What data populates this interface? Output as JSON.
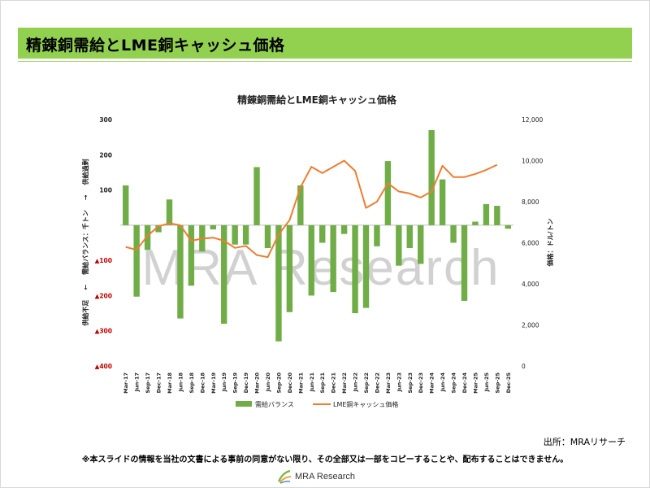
{
  "header": {
    "title": "精錬銅需給とLME銅キャッシュ価格"
  },
  "source_note": "出所：MRAリサーチ",
  "disclaimer": "※本スライドの情報を当社の文書による事前の同意がない限り、その全部又は一部をコピーすることや、配布することはできません。",
  "logo": {
    "text": "MRA Research"
  },
  "watermark": "MRA Research",
  "colors": {
    "header_band": "#92d050",
    "bar": "#70ad47",
    "line": "#ed7d31",
    "negative_tick": "#c00000",
    "logo_green": "#7ab648",
    "logo_orange": "#f4a23b"
  },
  "chart_data": {
    "type": "bar+line",
    "title": "精錬銅需給とLME銅キャッシュ価格",
    "y_left": {
      "label_parts": [
        "供給不足",
        "←",
        "需給バランス：千トン",
        "→",
        "供給過剰"
      ],
      "range": [
        -400,
        300
      ],
      "ticks": [
        {
          "value": 300,
          "text": "300",
          "negative": false
        },
        {
          "value": 200,
          "text": "200",
          "negative": false
        },
        {
          "value": 100,
          "text": "100",
          "negative": false
        },
        {
          "value": 0,
          "text": "",
          "negative": false
        },
        {
          "value": -100,
          "text": "100",
          "negative": true
        },
        {
          "value": -200,
          "text": "200",
          "negative": true
        },
        {
          "value": -300,
          "text": "300",
          "negative": true
        },
        {
          "value": -400,
          "text": "400",
          "negative": true
        }
      ]
    },
    "y_right": {
      "label": "価格：ドル/トン",
      "range": [
        0,
        12000
      ],
      "ticks": [
        "0",
        "2,000",
        "4,000",
        "6,000",
        "8,000",
        "10,000",
        "12,000"
      ]
    },
    "categories": [
      "Mar-17",
      "Jun-17",
      "Sep-17",
      "Dec-17",
      "Mar-18",
      "Jun-18",
      "Sep-18",
      "Dec-18",
      "Mar-19",
      "Jun-19",
      "Sep-19",
      "Dec-19",
      "Mar-20",
      "Jun-20",
      "Sep-20",
      "Dec-20",
      "Mar-21",
      "Jun-21",
      "Sep-21",
      "Dec-21",
      "Mar-22",
      "Jun-22",
      "Sep-22",
      "Dec-22",
      "Mar-23",
      "Jun-23",
      "Sep-23",
      "Dec-23",
      "Mar-24",
      "Jun-24",
      "Sep-24",
      "Dec-24",
      "Mar-25",
      "Jun-25",
      "Sep-25",
      "Dec-25"
    ],
    "series": [
      {
        "name": "需給バランス",
        "type": "bar",
        "axis": "left",
        "values": [
          113,
          -203,
          -70,
          -20,
          73,
          -265,
          -172,
          -75,
          -12,
          -280,
          -55,
          -55,
          165,
          -65,
          -330,
          -247,
          113,
          -200,
          -50,
          -190,
          -25,
          -250,
          -235,
          -60,
          182,
          -115,
          -65,
          -110,
          270,
          130,
          -50,
          -215,
          10,
          60,
          55,
          -10
        ]
      },
      {
        "name": "LME銅キャッシュ価格",
        "type": "line",
        "axis": "right",
        "values": [
          5800,
          5650,
          6350,
          6800,
          6950,
          6850,
          6100,
          6200,
          6250,
          6100,
          5750,
          5850,
          5400,
          5300,
          6400,
          7100,
          8700,
          9700,
          9400,
          9700,
          10000,
          9500,
          7700,
          8000,
          8900,
          8500,
          8400,
          8200,
          8500,
          9750,
          9200,
          9200,
          9350,
          9550,
          9800,
          null
        ]
      }
    ],
    "legend_position": "bottom"
  }
}
